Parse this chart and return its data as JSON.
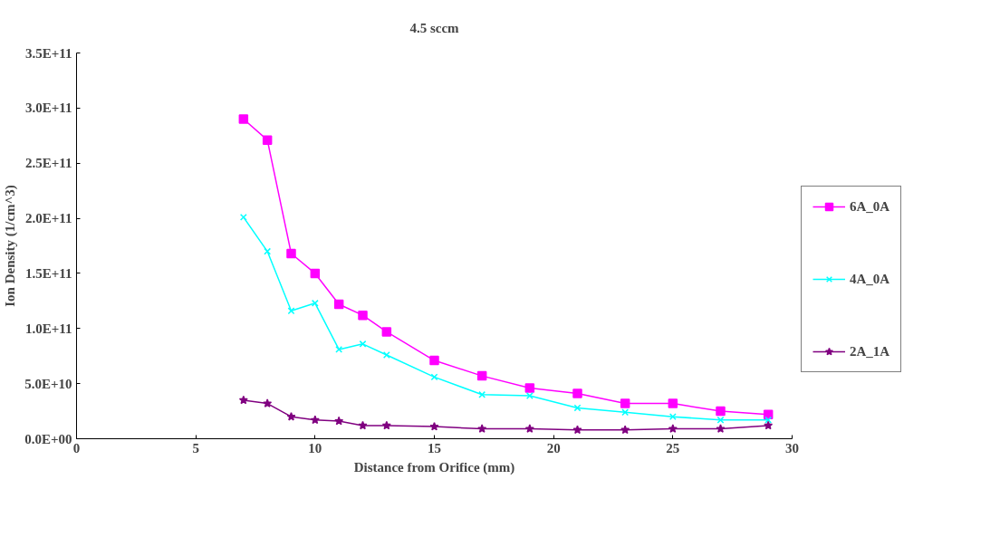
{
  "chart_data": {
    "type": "line",
    "title": "4.5 sccm",
    "xlabel": "Distance from Orifice (mm)",
    "ylabel": "Ion Density (1/cm^3)",
    "x": [
      7,
      8,
      9,
      10,
      11,
      12,
      13,
      15,
      17,
      19,
      21,
      23,
      25,
      27,
      29
    ],
    "xlim": [
      0,
      30
    ],
    "xticks": [
      0,
      5,
      10,
      15,
      20,
      25,
      30
    ],
    "ylim": [
      0,
      350000000000.0
    ],
    "yticks": [
      {
        "value": 0,
        "label": "0.0E+00"
      },
      {
        "value": 50000000000.0,
        "label": "5.0E+10"
      },
      {
        "value": 100000000000.0,
        "label": "1.0E+11"
      },
      {
        "value": 150000000000.0,
        "label": "1.5E+11"
      },
      {
        "value": 200000000000.0,
        "label": "2.0E+11"
      },
      {
        "value": 250000000000.0,
        "label": "2.5E+11"
      },
      {
        "value": 300000000000.0,
        "label": "3.0E+11"
      },
      {
        "value": 350000000000.0,
        "label": "3.5E+11"
      }
    ],
    "grid": false,
    "legend": "right",
    "line_style": "solid",
    "series": [
      {
        "name": "6A_0A",
        "color": "#ff00ff",
        "marker": "square",
        "values": [
          290000000000.0,
          271000000000.0,
          168000000000.0,
          150000000000.0,
          122000000000.0,
          112000000000.0,
          97000000000.0,
          71000000000.0,
          57000000000.0,
          46000000000.0,
          41000000000.0,
          32000000000.0,
          32000000000.0,
          25000000000.0,
          22000000000.0
        ]
      },
      {
        "name": "4A_0A",
        "color": "#00ffff",
        "marker": "cross",
        "values": [
          201000000000.0,
          170000000000.0,
          116000000000.0,
          123000000000.0,
          81000000000.0,
          86000000000.0,
          76000000000.0,
          56000000000.0,
          40000000000.0,
          39000000000.0,
          28000000000.0,
          24000000000.0,
          20000000000.0,
          17000000000.0,
          17000000000.0
        ]
      },
      {
        "name": "2A_1A",
        "color": "#800080",
        "marker": "star",
        "values": [
          35000000000.0,
          32000000000.0,
          20000000000.0,
          17000000000.0,
          16000000000.0,
          12000000000.0,
          12000000000.0,
          11000000000.0,
          9000000000.0,
          9000000000.0,
          8000000000.0,
          8000000000.0,
          9000000000.0,
          9000000000.0,
          12000000000.0
        ]
      }
    ]
  }
}
